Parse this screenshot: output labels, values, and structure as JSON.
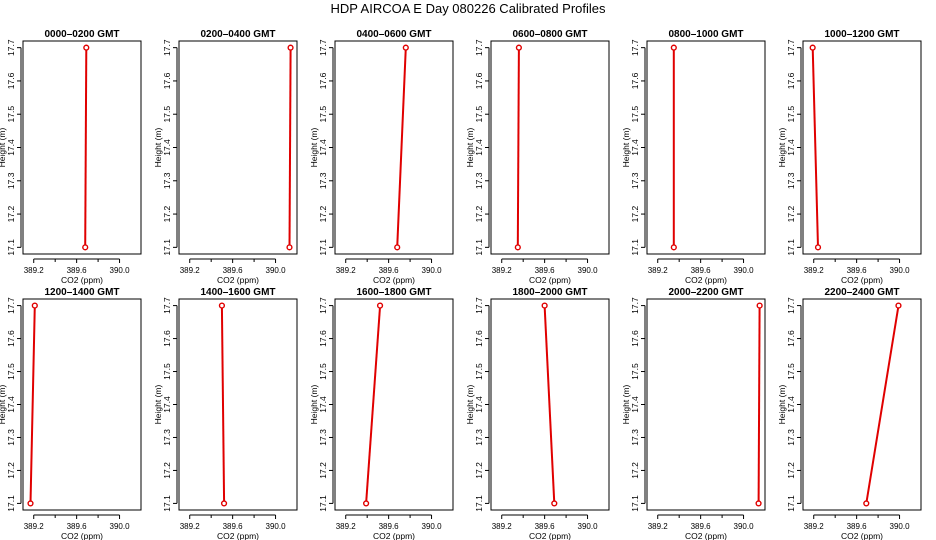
{
  "figure": {
    "title": "HDP  AIRCOA E  Day 080226  Calibrated Profiles"
  },
  "styles": {
    "series_color": "#e00000",
    "axis_color": "#000000"
  },
  "chart_data": [
    {
      "type": "line",
      "title": "0000–0200 GMT",
      "xlabel": "CO2 (ppm)",
      "ylabel": "Height (m)",
      "xlim": [
        389.1,
        390.2
      ],
      "ylim": [
        17.08,
        17.72
      ],
      "x_ticks": [
        389.2,
        389.6,
        390.0
      ],
      "y_ticks": [
        17.1,
        17.2,
        17.3,
        17.4,
        17.5,
        17.6,
        17.7
      ],
      "x": [
        389.68,
        389.69
      ],
      "y": [
        17.1,
        17.7
      ]
    },
    {
      "type": "line",
      "title": "0200–0400 GMT",
      "xlabel": "CO2 (ppm)",
      "ylabel": "Height (m)",
      "xlim": [
        389.1,
        390.2
      ],
      "ylim": [
        17.08,
        17.72
      ],
      "x_ticks": [
        389.2,
        389.6,
        390.0
      ],
      "y_ticks": [
        17.1,
        17.2,
        17.3,
        17.4,
        17.5,
        17.6,
        17.7
      ],
      "x": [
        390.13,
        390.14
      ],
      "y": [
        17.1,
        17.7
      ]
    },
    {
      "type": "line",
      "title": "0400–0600 GMT",
      "xlabel": "CO2 (ppm)",
      "ylabel": "Height (m)",
      "xlim": [
        389.1,
        390.2
      ],
      "ylim": [
        17.08,
        17.72
      ],
      "x_ticks": [
        389.2,
        389.6,
        390.0
      ],
      "y_ticks": [
        17.1,
        17.2,
        17.3,
        17.4,
        17.5,
        17.6,
        17.7
      ],
      "x": [
        389.68,
        389.76
      ],
      "y": [
        17.1,
        17.7
      ]
    },
    {
      "type": "line",
      "title": "0600–0800 GMT",
      "xlabel": "CO2 (ppm)",
      "ylabel": "Height (m)",
      "xlim": [
        389.1,
        390.2
      ],
      "ylim": [
        17.08,
        17.72
      ],
      "x_ticks": [
        389.2,
        389.6,
        390.0
      ],
      "y_ticks": [
        17.1,
        17.2,
        17.3,
        17.4,
        17.5,
        17.6,
        17.7
      ],
      "x": [
        389.35,
        389.36
      ],
      "y": [
        17.1,
        17.7
      ]
    },
    {
      "type": "line",
      "title": "0800–1000 GMT",
      "xlabel": "CO2 (ppm)",
      "ylabel": "Height (m)",
      "xlim": [
        389.1,
        390.2
      ],
      "ylim": [
        17.08,
        17.72
      ],
      "x_ticks": [
        389.2,
        389.6,
        390.0
      ],
      "y_ticks": [
        17.1,
        17.2,
        17.3,
        17.4,
        17.5,
        17.6,
        17.7
      ],
      "x": [
        389.35,
        389.35
      ],
      "y": [
        17.1,
        17.7
      ]
    },
    {
      "type": "line",
      "title": "1000–1200 GMT",
      "xlabel": "CO2 (ppm)",
      "ylabel": "Height (m)",
      "xlim": [
        389.1,
        390.2
      ],
      "ylim": [
        17.08,
        17.72
      ],
      "x_ticks": [
        389.2,
        389.6,
        390.0
      ],
      "y_ticks": [
        17.1,
        17.2,
        17.3,
        17.4,
        17.5,
        17.6,
        17.7
      ],
      "x": [
        389.24,
        389.19
      ],
      "y": [
        17.1,
        17.7
      ]
    },
    {
      "type": "line",
      "title": "1200–1400 GMT",
      "xlabel": "CO2 (ppm)",
      "ylabel": "Height (m)",
      "xlim": [
        389.1,
        390.2
      ],
      "ylim": [
        17.08,
        17.72
      ],
      "x_ticks": [
        389.2,
        389.6,
        390.0
      ],
      "y_ticks": [
        17.1,
        17.2,
        17.3,
        17.4,
        17.5,
        17.6,
        17.7
      ],
      "x": [
        389.17,
        389.21
      ],
      "y": [
        17.1,
        17.7
      ]
    },
    {
      "type": "line",
      "title": "1400–1600 GMT",
      "xlabel": "CO2 (ppm)",
      "ylabel": "Height (m)",
      "xlim": [
        389.1,
        390.2
      ],
      "ylim": [
        17.08,
        17.72
      ],
      "x_ticks": [
        389.2,
        389.6,
        390.0
      ],
      "y_ticks": [
        17.1,
        17.2,
        17.3,
        17.4,
        17.5,
        17.6,
        17.7
      ],
      "x": [
        389.52,
        389.5
      ],
      "y": [
        17.1,
        17.7
      ]
    },
    {
      "type": "line",
      "title": "1600–1800 GMT",
      "xlabel": "CO2 (ppm)",
      "ylabel": "Height (m)",
      "xlim": [
        389.1,
        390.2
      ],
      "ylim": [
        17.08,
        17.72
      ],
      "x_ticks": [
        389.2,
        389.6,
        390.0
      ],
      "y_ticks": [
        17.1,
        17.2,
        17.3,
        17.4,
        17.5,
        17.6,
        17.7
      ],
      "x": [
        389.39,
        389.52
      ],
      "y": [
        17.1,
        17.7
      ]
    },
    {
      "type": "line",
      "title": "1800–2000 GMT",
      "xlabel": "CO2 (ppm)",
      "ylabel": "Height (m)",
      "xlim": [
        389.1,
        390.2
      ],
      "ylim": [
        17.08,
        17.72
      ],
      "x_ticks": [
        389.2,
        389.6,
        390.0
      ],
      "y_ticks": [
        17.1,
        17.2,
        17.3,
        17.4,
        17.5,
        17.6,
        17.7
      ],
      "x": [
        389.69,
        389.6
      ],
      "y": [
        17.1,
        17.7
      ]
    },
    {
      "type": "line",
      "title": "2000–2200 GMT",
      "xlabel": "CO2 (ppm)",
      "ylabel": "Height (m)",
      "xlim": [
        389.1,
        390.2
      ],
      "ylim": [
        17.08,
        17.72
      ],
      "x_ticks": [
        389.2,
        389.6,
        390.0
      ],
      "y_ticks": [
        17.1,
        17.2,
        17.3,
        17.4,
        17.5,
        17.6,
        17.7
      ],
      "x": [
        390.14,
        390.15
      ],
      "y": [
        17.1,
        17.7
      ]
    },
    {
      "type": "line",
      "title": "2200–2400 GMT",
      "xlabel": "CO2 (ppm)",
      "ylabel": "Height (m)",
      "xlim": [
        389.1,
        390.2
      ],
      "ylim": [
        17.08,
        17.72
      ],
      "x_ticks": [
        389.2,
        389.6,
        390.0
      ],
      "y_ticks": [
        17.1,
        17.2,
        17.3,
        17.4,
        17.5,
        17.6,
        17.7
      ],
      "x": [
        389.69,
        389.99
      ],
      "y": [
        17.1,
        17.7
      ]
    }
  ]
}
